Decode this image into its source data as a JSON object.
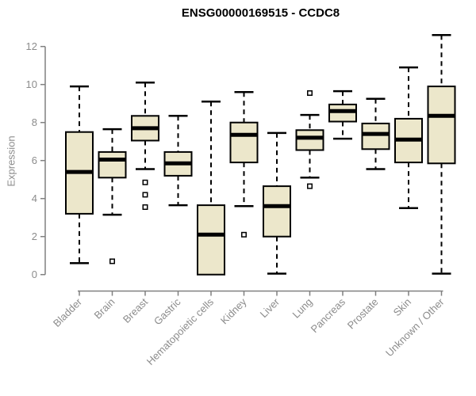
{
  "title": "ENSG00000169515 - CCDC8",
  "chart_data": {
    "type": "boxplot",
    "title": "ENSG00000169515 - CCDC8",
    "ylabel": "Expression",
    "xlabel": "",
    "ylim": [
      0,
      12
    ],
    "yticks": [
      0,
      2,
      4,
      6,
      8,
      10,
      12
    ],
    "grid": false,
    "legend": "none",
    "categories": [
      "Bladder",
      "Brain",
      "Breast",
      "Gastric",
      "Hematopoietic cells",
      "Kidney",
      "Liver",
      "Lung",
      "Pancreas",
      "Prostate",
      "Skin",
      "Unknown / Other"
    ],
    "series": [
      {
        "category": "Bladder",
        "whisker_low": 0.6,
        "q1": 3.2,
        "median": 5.4,
        "q3": 7.5,
        "whisker_high": 9.9,
        "outliers": []
      },
      {
        "category": "Brain",
        "whisker_low": 3.15,
        "q1": 5.1,
        "median": 6.05,
        "q3": 6.45,
        "whisker_high": 7.65,
        "outliers": [
          0.7
        ]
      },
      {
        "category": "Breast",
        "whisker_low": 5.55,
        "q1": 7.05,
        "median": 7.7,
        "q3": 8.35,
        "whisker_high": 10.1,
        "outliers": [
          4.85,
          4.2,
          3.55
        ]
      },
      {
        "category": "Gastric",
        "whisker_low": 3.65,
        "q1": 5.2,
        "median": 5.85,
        "q3": 6.45,
        "whisker_high": 8.35,
        "outliers": []
      },
      {
        "category": "Hematopoietic cells",
        "whisker_low": 0.0,
        "q1": 0.0,
        "median": 2.1,
        "q3": 3.65,
        "whisker_high": 9.1,
        "outliers": []
      },
      {
        "category": "Kidney",
        "whisker_low": 3.6,
        "q1": 5.9,
        "median": 7.35,
        "q3": 8.0,
        "whisker_high": 9.6,
        "outliers": [
          2.1
        ]
      },
      {
        "category": "Liver",
        "whisker_low": 0.05,
        "q1": 2.0,
        "median": 3.6,
        "q3": 4.65,
        "whisker_high": 7.45,
        "outliers": []
      },
      {
        "category": "Lung",
        "whisker_low": 5.1,
        "q1": 6.55,
        "median": 7.2,
        "q3": 7.6,
        "whisker_high": 8.4,
        "outliers": [
          9.55,
          4.65
        ]
      },
      {
        "category": "Pancreas",
        "whisker_low": 7.15,
        "q1": 8.05,
        "median": 8.6,
        "q3": 8.95,
        "whisker_high": 9.65,
        "outliers": []
      },
      {
        "category": "Prostate",
        "whisker_low": 5.55,
        "q1": 6.6,
        "median": 7.4,
        "q3": 7.95,
        "whisker_high": 9.25,
        "outliers": []
      },
      {
        "category": "Skin",
        "whisker_low": 3.5,
        "q1": 5.9,
        "median": 7.1,
        "q3": 8.2,
        "whisker_high": 10.9,
        "outliers": []
      },
      {
        "category": "Unknown / Other",
        "whisker_low": 0.05,
        "q1": 5.85,
        "median": 8.35,
        "q3": 9.9,
        "whisker_high": 12.6,
        "outliers": []
      }
    ],
    "colors": {
      "box_fill": "#ece7cb",
      "box_stroke": "#000000",
      "median": "#000000",
      "whisker": "#000000",
      "axis_line": "#808080",
      "axis_text": "#8c8c8c",
      "title": "#000000",
      "background": "#ffffff"
    }
  }
}
